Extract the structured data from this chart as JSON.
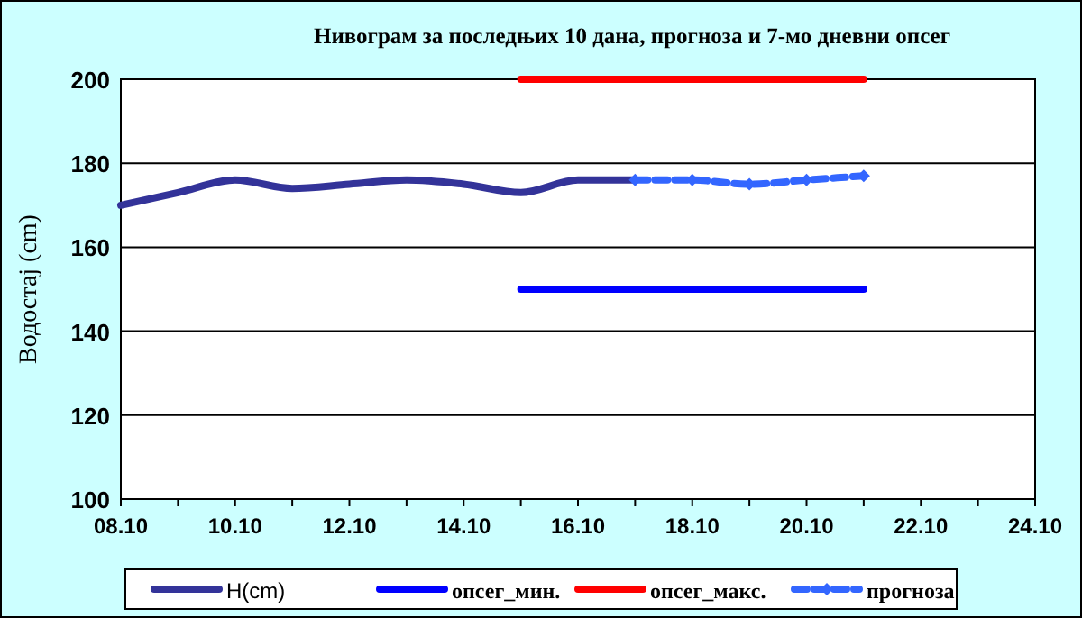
{
  "chart_data": {
    "type": "line",
    "title": "Нивограм за последњих 10 дана, прогноза и 7-мо дневни опсег",
    "ylabel": "Водостај (cm)",
    "xlim": [
      "--10-08",
      "--10-24"
    ],
    "xticks": [
      {
        "value": "--10-08",
        "label": "08.10"
      },
      {
        "value": "--10-09",
        "label": null
      },
      {
        "value": "--10-10",
        "label": "10.10"
      },
      {
        "value": "--10-11",
        "label": null
      },
      {
        "value": "--10-12",
        "label": "12.10"
      },
      {
        "value": "--10-13",
        "label": null
      },
      {
        "value": "--10-14",
        "label": "14.10"
      },
      {
        "value": "--10-15",
        "label": null
      },
      {
        "value": "--10-16",
        "label": "16.10"
      },
      {
        "value": "--10-17",
        "label": null
      },
      {
        "value": "--10-18",
        "label": "18.10"
      },
      {
        "value": "--10-19",
        "label": null
      },
      {
        "value": "--10-20",
        "label": "20.10"
      },
      {
        "value": "--10-21",
        "label": null
      },
      {
        "value": "--10-22",
        "label": "22.10"
      },
      {
        "value": "--10-23",
        "label": null
      },
      {
        "value": "--10-24",
        "label": "24.10"
      }
    ],
    "ylim": [
      100,
      200
    ],
    "yticks": [
      100,
      120,
      140,
      160,
      180,
      200
    ],
    "grid": "y",
    "legend": "bottom",
    "series": [
      {
        "name": "H(cm)",
        "color": "#333399",
        "marker": "none",
        "line_style": "solid",
        "x": [
          "--10-08",
          "--10-09",
          "--10-10",
          "--10-11",
          "--10-12",
          "--10-13",
          "--10-14",
          "--10-15",
          "--10-16",
          "--10-17"
        ],
        "values": [
          170,
          173,
          176,
          174,
          175,
          176,
          175,
          173,
          176,
          176
        ]
      },
      {
        "name": "опсег_мин.",
        "color": "#0000ff",
        "marker": "none",
        "line_style": "solid",
        "x": [
          "--10-15",
          "--10-21"
        ],
        "values": [
          150,
          150
        ]
      },
      {
        "name": "опсег_макс.",
        "color": "#ff0000",
        "marker": "none",
        "line_style": "solid",
        "x": [
          "--10-15",
          "--10-21"
        ],
        "values": [
          200,
          200
        ]
      },
      {
        "name": "прогноза",
        "color": "#3366ff",
        "marker": "diamond",
        "line_style": "dashed",
        "x": [
          "--10-17",
          "--10-18",
          "--10-19",
          "--10-20",
          "--10-21"
        ],
        "values": [
          176,
          176,
          175,
          176,
          177
        ]
      }
    ]
  }
}
